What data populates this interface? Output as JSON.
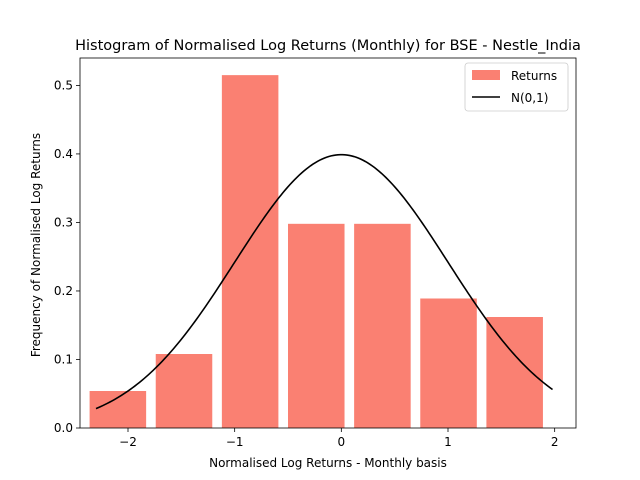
{
  "chart_data": {
    "type": "bar",
    "title": "Histogram of Normalised Log Returns (Monthly) for BSE - Nestle_India",
    "xlabel": "Normalised Log Returns - Monthly basis",
    "ylabel": "Frequency of Normalised Log Returns",
    "xlim": [
      -2.45,
      2.2
    ],
    "ylim": [
      0,
      0.54
    ],
    "xticks": [
      -2,
      -1,
      0,
      1,
      2
    ],
    "xtick_labels": [
      "−2",
      "−1",
      "0",
      "1",
      "2"
    ],
    "yticks": [
      0.0,
      0.1,
      0.2,
      0.3,
      0.4,
      0.5
    ],
    "ytick_labels": [
      "0.0",
      "0.1",
      "0.2",
      "0.3",
      "0.4",
      "0.5"
    ],
    "bar_color": "#fa8072",
    "line_color": "#000000",
    "grid": false,
    "legend_position": "top-right",
    "series": [
      {
        "name": "Returns",
        "kind": "bar",
        "bins": [
          {
            "left": -2.36,
            "right": -1.83,
            "value": 0.054
          },
          {
            "left": -1.74,
            "right": -1.21,
            "value": 0.108
          },
          {
            "left": -1.12,
            "right": -0.59,
            "value": 0.515
          },
          {
            "left": -0.5,
            "right": 0.03,
            "value": 0.298
          },
          {
            "left": 0.12,
            "right": 0.65,
            "value": 0.298
          },
          {
            "left": 0.74,
            "right": 1.27,
            "value": 0.189
          },
          {
            "left": 1.36,
            "right": 1.89,
            "value": 0.162
          }
        ]
      },
      {
        "name": "N(0,1)",
        "kind": "line",
        "function": "standard_normal_pdf",
        "x_range": [
          -2.3,
          1.98
        ]
      }
    ]
  }
}
